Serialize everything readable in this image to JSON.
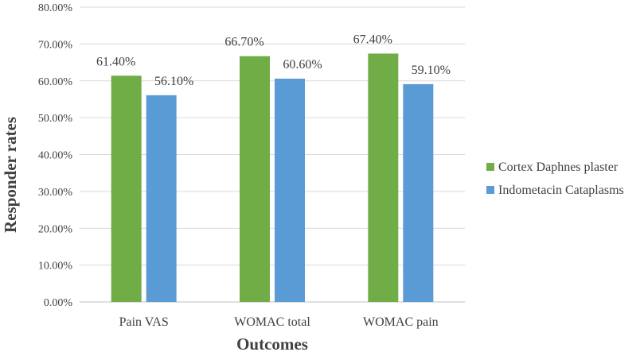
{
  "chart_data": {
    "type": "bar",
    "title": "",
    "xlabel": "Outcomes",
    "ylabel": "Responder rates",
    "categories": [
      "Pain VAS",
      "WOMAC total",
      "WOMAC pain"
    ],
    "series": [
      {
        "name": "Cortex Daphnes plaster",
        "color": "#70ad47",
        "values": [
          61.4,
          66.7,
          67.4
        ],
        "labels": [
          "61.40%",
          "66.70%",
          "67.40%"
        ]
      },
      {
        "name": "Indometacin Cataplasms",
        "color": "#5b9bd5",
        "values": [
          56.1,
          60.6,
          59.1
        ],
        "labels": [
          "56.10%",
          "60.60%",
          "59.10%"
        ]
      }
    ],
    "ylim": [
      0,
      80
    ],
    "yticks": [
      0,
      10,
      20,
      30,
      40,
      50,
      60,
      70,
      80
    ],
    "ytick_labels": [
      "0.00%",
      "10.00%",
      "20.00%",
      "30.00%",
      "40.00%",
      "50.00%",
      "60.00%",
      "70.00%",
      "80.00%"
    ],
    "grid": true,
    "legend_position": "right"
  }
}
